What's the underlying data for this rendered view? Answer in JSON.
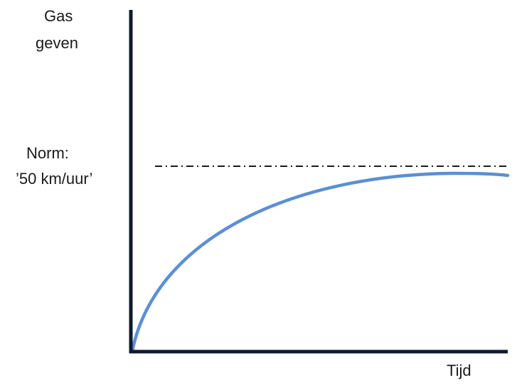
{
  "y_axis_label": [
    "Gas",
    "geven"
  ],
  "norm_label": [
    "Norm:",
    "’50 km/uur’"
  ],
  "x_axis_label": "Tijd",
  "colors": {
    "axis": "#0d1a2e",
    "curve": "#5b8fd6",
    "norm_line": "#1a1a1a"
  }
}
